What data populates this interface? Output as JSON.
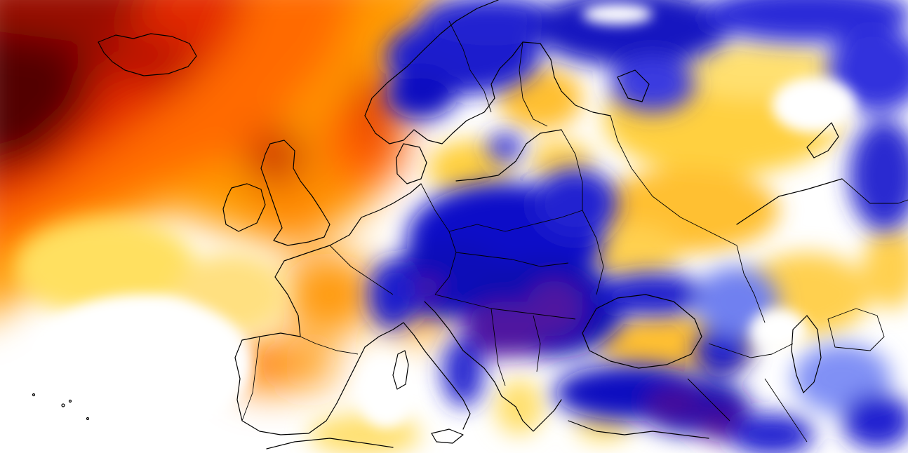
{
  "map": {
    "type": "anomaly-heatmap",
    "region": "Europe",
    "palette": {
      "extreme_warm": "#5a0000",
      "strong_warm": "#c41200",
      "warm": "#ff5a00",
      "moderate_warm": "#ff9a00",
      "slight_warm": "#ffd040",
      "near_normal": "#ffffff",
      "slight_cold": "#8090ff",
      "cold": "#1a1acc",
      "strong_cold": "#0000a0",
      "extreme_cold": "#5a1a9a"
    },
    "legend_visible": false,
    "labels_visible": false
  }
}
